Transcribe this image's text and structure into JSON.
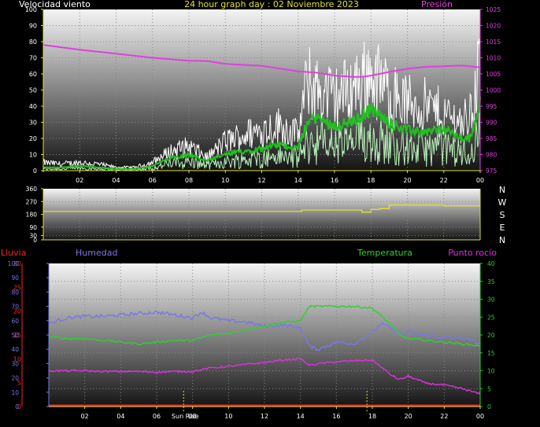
{
  "header": {
    "title": "24 hour graph day : 02 Noviembre 2023",
    "wind_label": "Velocidad viento",
    "pressure_label": "Presión"
  },
  "direction_labels": [
    "N",
    "W",
    "S",
    "E",
    "N"
  ],
  "bottom_labels": {
    "rain": "Lluvia",
    "humidity": "Humedad",
    "temperature": "Temperatura",
    "dewpoint": "Punto rocío",
    "sunrise": "Sun Rise"
  },
  "colors": {
    "wind_gust": "#ffffff",
    "wind_avg_light": "#b8f0b8",
    "wind_avg": "#22c022",
    "pressure": "#e040e0",
    "direction": "#e0e030",
    "rain": "#ff2020",
    "humidity": "#7878e8",
    "temperature": "#30d030",
    "dewpoint": "#e030e0",
    "sun_marker": "#e0e030"
  },
  "chart_data": [
    {
      "type": "line",
      "title": "24 hour graph day : 02 Noviembre 2023",
      "x_tick_labels": [
        "02",
        "04",
        "06",
        "08",
        "10",
        "12",
        "14",
        "16",
        "18",
        "20",
        "22",
        "00"
      ],
      "xlim": [
        0,
        24
      ],
      "y_left": {
        "label": "Velocidad viento",
        "ylim": [
          0,
          100
        ],
        "ticks": [
          0,
          10,
          20,
          30,
          40,
          50,
          60,
          70,
          80,
          90,
          100
        ]
      },
      "y_right": {
        "label": "Presión",
        "ylim": [
          975,
          1025
        ],
        "ticks": [
          975,
          980,
          985,
          990,
          995,
          1000,
          1005,
          1010,
          1015,
          1020,
          1025
        ]
      },
      "series": [
        {
          "name": "Velocidad viento",
          "axis": "left",
          "color": "#ffffff",
          "x": [
            0,
            1,
            2,
            3,
            4,
            5,
            6,
            7,
            8,
            9,
            10,
            11,
            12,
            13,
            14,
            14.5,
            15,
            16,
            17,
            18,
            19,
            20,
            21,
            22,
            23,
            23.5,
            24
          ],
          "y": [
            5,
            4,
            5,
            4,
            2,
            2,
            5,
            12,
            15,
            8,
            18,
            22,
            25,
            28,
            22,
            55,
            50,
            45,
            52,
            60,
            48,
            42,
            40,
            35,
            30,
            35,
            70
          ]
        },
        {
          "axis": "left",
          "color": "#22c022",
          "x": [
            0,
            1,
            2,
            3,
            4,
            5,
            6,
            7,
            8,
            9,
            10,
            11,
            12,
            13,
            14,
            14.5,
            15,
            16,
            17,
            18,
            19,
            20,
            21,
            22,
            23,
            23.5,
            24
          ],
          "y": [
            2,
            2,
            3,
            2,
            1,
            1,
            3,
            8,
            10,
            6,
            10,
            12,
            14,
            16,
            14,
            30,
            33,
            28,
            30,
            38,
            30,
            25,
            24,
            26,
            20,
            20,
            45
          ]
        },
        {
          "name": "Presión",
          "axis": "right",
          "color": "#e040e0",
          "x": [
            0,
            2,
            4,
            6,
            8,
            9,
            10,
            12,
            14,
            15,
            16,
            17,
            17.5,
            18,
            19,
            20,
            21,
            22,
            23,
            24
          ],
          "y": [
            1014,
            1012.5,
            1011.3,
            1010,
            1009.1,
            1009,
            1008.1,
            1007.5,
            1005.8,
            1005.4,
            1004.5,
            1004.1,
            1004.1,
            1004.5,
            1005.6,
            1006.6,
            1007.2,
            1007.4,
            1007.6,
            1007
          ]
        }
      ]
    },
    {
      "type": "line",
      "x_tick_labels": [],
      "xlim": [
        0,
        24
      ],
      "y_left": {
        "ylim": [
          0,
          360
        ],
        "ticks": [
          0,
          30,
          90,
          180,
          270,
          360
        ]
      },
      "series": [
        {
          "axis": "left",
          "color": "#e0e030",
          "x": [
            0,
            4,
            8,
            12,
            13.8,
            14.2,
            15,
            17.5,
            18,
            18.5,
            19,
            20,
            22,
            24
          ],
          "y": [
            200,
            200,
            200,
            200,
            200,
            210,
            210,
            195,
            215,
            220,
            245,
            245,
            240,
            240
          ]
        }
      ]
    },
    {
      "type": "line",
      "x_tick_labels": [
        "02",
        "04",
        "06",
        "08",
        "10",
        "12",
        "14",
        "16",
        "18",
        "20",
        "22",
        "00"
      ],
      "xlim": [
        0,
        24
      ],
      "y_outer_left": {
        "label": "Lluvia",
        "ylim": [
          0,
          30
        ],
        "ticks": [
          0,
          5,
          10,
          15,
          20,
          25,
          30
        ]
      },
      "y_left": {
        "label": "Humedad",
        "ylim": [
          0,
          100
        ],
        "ticks": [
          0,
          10,
          20,
          30,
          40,
          50,
          60,
          70,
          80,
          90,
          100
        ]
      },
      "y_right": {
        "ylim": [
          0,
          40
        ],
        "ticks": [
          0,
          5,
          10,
          15,
          20,
          25,
          30,
          35,
          40
        ]
      },
      "series": [
        {
          "name": "Lluvia",
          "axis": "outer_left",
          "color": "#ff2020",
          "x": [
            0,
            24
          ],
          "y": [
            0,
            0
          ]
        },
        {
          "name": "Humedad",
          "axis": "left",
          "color": "#7878e8",
          "x": [
            0,
            1,
            2,
            3,
            4,
            5,
            6,
            7,
            8,
            8.5,
            9,
            10,
            11,
            12,
            13,
            14,
            14.5,
            15,
            16,
            17,
            18,
            18.5,
            19,
            19.5,
            20,
            21,
            22,
            23,
            24
          ],
          "y": [
            58,
            62,
            63,
            63,
            64,
            65,
            66,
            64,
            62,
            66,
            62,
            60,
            59,
            56,
            57,
            55,
            42,
            40,
            45,
            44,
            52,
            58,
            55,
            50,
            52,
            50,
            48,
            48,
            44
          ]
        },
        {
          "name": "Temperatura",
          "axis": "right",
          "color": "#30d030",
          "x": [
            0,
            1,
            2,
            3,
            4,
            5,
            6,
            7,
            8,
            9,
            10,
            11,
            12,
            13,
            14,
            14.5,
            15,
            16,
            17,
            18,
            19,
            19.5,
            20,
            21,
            22,
            23,
            24
          ],
          "y": [
            19.5,
            19,
            19,
            18.5,
            18,
            17.5,
            18,
            18.5,
            18.5,
            20,
            20.5,
            21.5,
            22.5,
            23.5,
            24,
            28,
            28,
            28,
            28,
            27.5,
            23,
            20,
            19,
            18.5,
            18,
            17.5,
            17
          ]
        },
        {
          "name": "Punto rocío",
          "axis": "right",
          "color": "#e030e0",
          "x": [
            0,
            1,
            2,
            3,
            4,
            5,
            6,
            7,
            8,
            9,
            10,
            11,
            12,
            13,
            14,
            14.5,
            15,
            16,
            17,
            18,
            19,
            19.5,
            20,
            21,
            22,
            23,
            24
          ],
          "y": [
            10,
            10,
            10,
            9.8,
            9.8,
            9.8,
            9.6,
            9.8,
            9.8,
            10.8,
            11.2,
            11.8,
            12.3,
            13,
            13.4,
            11.5,
            12,
            12.5,
            12.8,
            13,
            9,
            7.5,
            8.5,
            6.5,
            6,
            5,
            3.5
          ]
        }
      ],
      "annotations": [
        {
          "label": "Sun Rise",
          "x": 7.5
        },
        {
          "x": 17.7
        }
      ]
    }
  ]
}
